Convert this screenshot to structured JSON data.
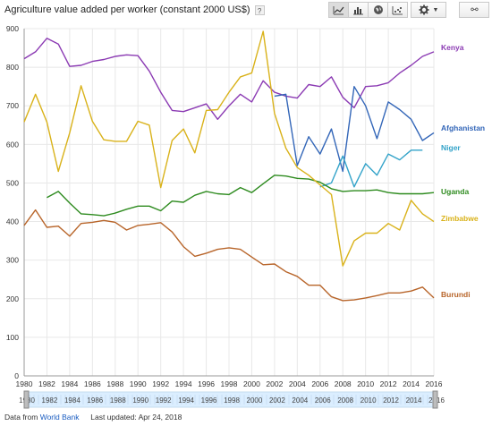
{
  "title": "Agriculture value added per worker (constant 2000 US$)",
  "help_label": "?",
  "toolbar": {
    "line_icon": "line-chart-icon",
    "bar_icon": "bar-chart-icon",
    "map_icon": "globe-icon",
    "scatter_icon": "scatter-chart-icon"
  },
  "settings": {
    "icon": "gear-icon",
    "caret": "▼"
  },
  "link": {
    "icon": "link-icon",
    "glyph": "⚯"
  },
  "footer": {
    "prefix": "Data from",
    "source": "World Bank",
    "updated": "Last updated: Apr 24, 2018"
  },
  "colors": {
    "Kenya": "#8b3ab3",
    "Afghanistan": "#3366b8",
    "Niger": "#33a3c9",
    "Uganda": "#2e8b1f",
    "Zimbabwe": "#d9b21a",
    "Burundi": "#b8652a",
    "grid": "#e8e8e8",
    "timeline": "#dbeeff"
  },
  "chart_data": {
    "type": "line",
    "x": [
      1980,
      1981,
      1982,
      1983,
      1984,
      1985,
      1986,
      1987,
      1988,
      1989,
      1990,
      1991,
      1992,
      1993,
      1994,
      1995,
      1996,
      1997,
      1998,
      1999,
      2000,
      2001,
      2002,
      2003,
      2004,
      2005,
      2006,
      2007,
      2008,
      2009,
      2010,
      2011,
      2012,
      2013,
      2014,
      2015,
      2016
    ],
    "xticks": [
      1980,
      1982,
      1984,
      1986,
      1988,
      1990,
      1992,
      1994,
      1996,
      1998,
      2000,
      2002,
      2004,
      2006,
      2008,
      2010,
      2012,
      2014,
      2016
    ],
    "yticks": [
      0,
      100,
      200,
      300,
      400,
      500,
      600,
      700,
      800,
      900
    ],
    "xlim": [
      1980,
      2016
    ],
    "ylim": [
      0,
      900
    ],
    "grid": true,
    "legend": "right-end-labels",
    "series": [
      {
        "name": "Kenya",
        "values": [
          822,
          840,
          875,
          860,
          802,
          805,
          815,
          820,
          828,
          832,
          830,
          790,
          735,
          688,
          685,
          695,
          705,
          665,
          700,
          730,
          710,
          765,
          735,
          725,
          720,
          755,
          750,
          775,
          722,
          695,
          750,
          752,
          760,
          785,
          805,
          828,
          840
        ]
      },
      {
        "name": "Afghanistan",
        "values": [
          null,
          null,
          null,
          null,
          null,
          null,
          null,
          null,
          null,
          null,
          null,
          null,
          null,
          null,
          null,
          null,
          null,
          null,
          null,
          null,
          null,
          null,
          725,
          730,
          545,
          620,
          575,
          640,
          530,
          750,
          700,
          615,
          710,
          690,
          665,
          610,
          630
        ]
      },
      {
        "name": "Niger",
        "values": [
          null,
          null,
          null,
          null,
          null,
          null,
          null,
          null,
          null,
          null,
          null,
          null,
          null,
          null,
          null,
          null,
          null,
          null,
          null,
          null,
          null,
          null,
          null,
          null,
          null,
          null,
          490,
          500,
          570,
          490,
          550,
          520,
          575,
          560,
          585,
          585,
          null
        ]
      },
      {
        "name": "Uganda",
        "values": [
          null,
          null,
          462,
          478,
          448,
          420,
          418,
          415,
          422,
          432,
          440,
          440,
          428,
          453,
          450,
          468,
          478,
          472,
          470,
          488,
          475,
          498,
          520,
          518,
          512,
          510,
          502,
          485,
          478,
          480,
          480,
          482,
          475,
          472,
          472,
          472,
          475
        ]
      },
      {
        "name": "Zimbabwe",
        "values": [
          658,
          730,
          658,
          530,
          630,
          752,
          660,
          612,
          608,
          608,
          660,
          650,
          488,
          610,
          640,
          578,
          688,
          690,
          735,
          775,
          785,
          893,
          680,
          590,
          540,
          520,
          495,
          470,
          285,
          350,
          370,
          370,
          395,
          378,
          455,
          420,
          400
        ]
      },
      {
        "name": "Burundi",
        "values": [
          390,
          430,
          385,
          388,
          362,
          395,
          398,
          403,
          398,
          378,
          390,
          393,
          397,
          373,
          335,
          310,
          318,
          328,
          332,
          328,
          308,
          288,
          290,
          270,
          258,
          235,
          235,
          205,
          195,
          197,
          202,
          208,
          215,
          215,
          220,
          230,
          202
        ]
      }
    ]
  }
}
